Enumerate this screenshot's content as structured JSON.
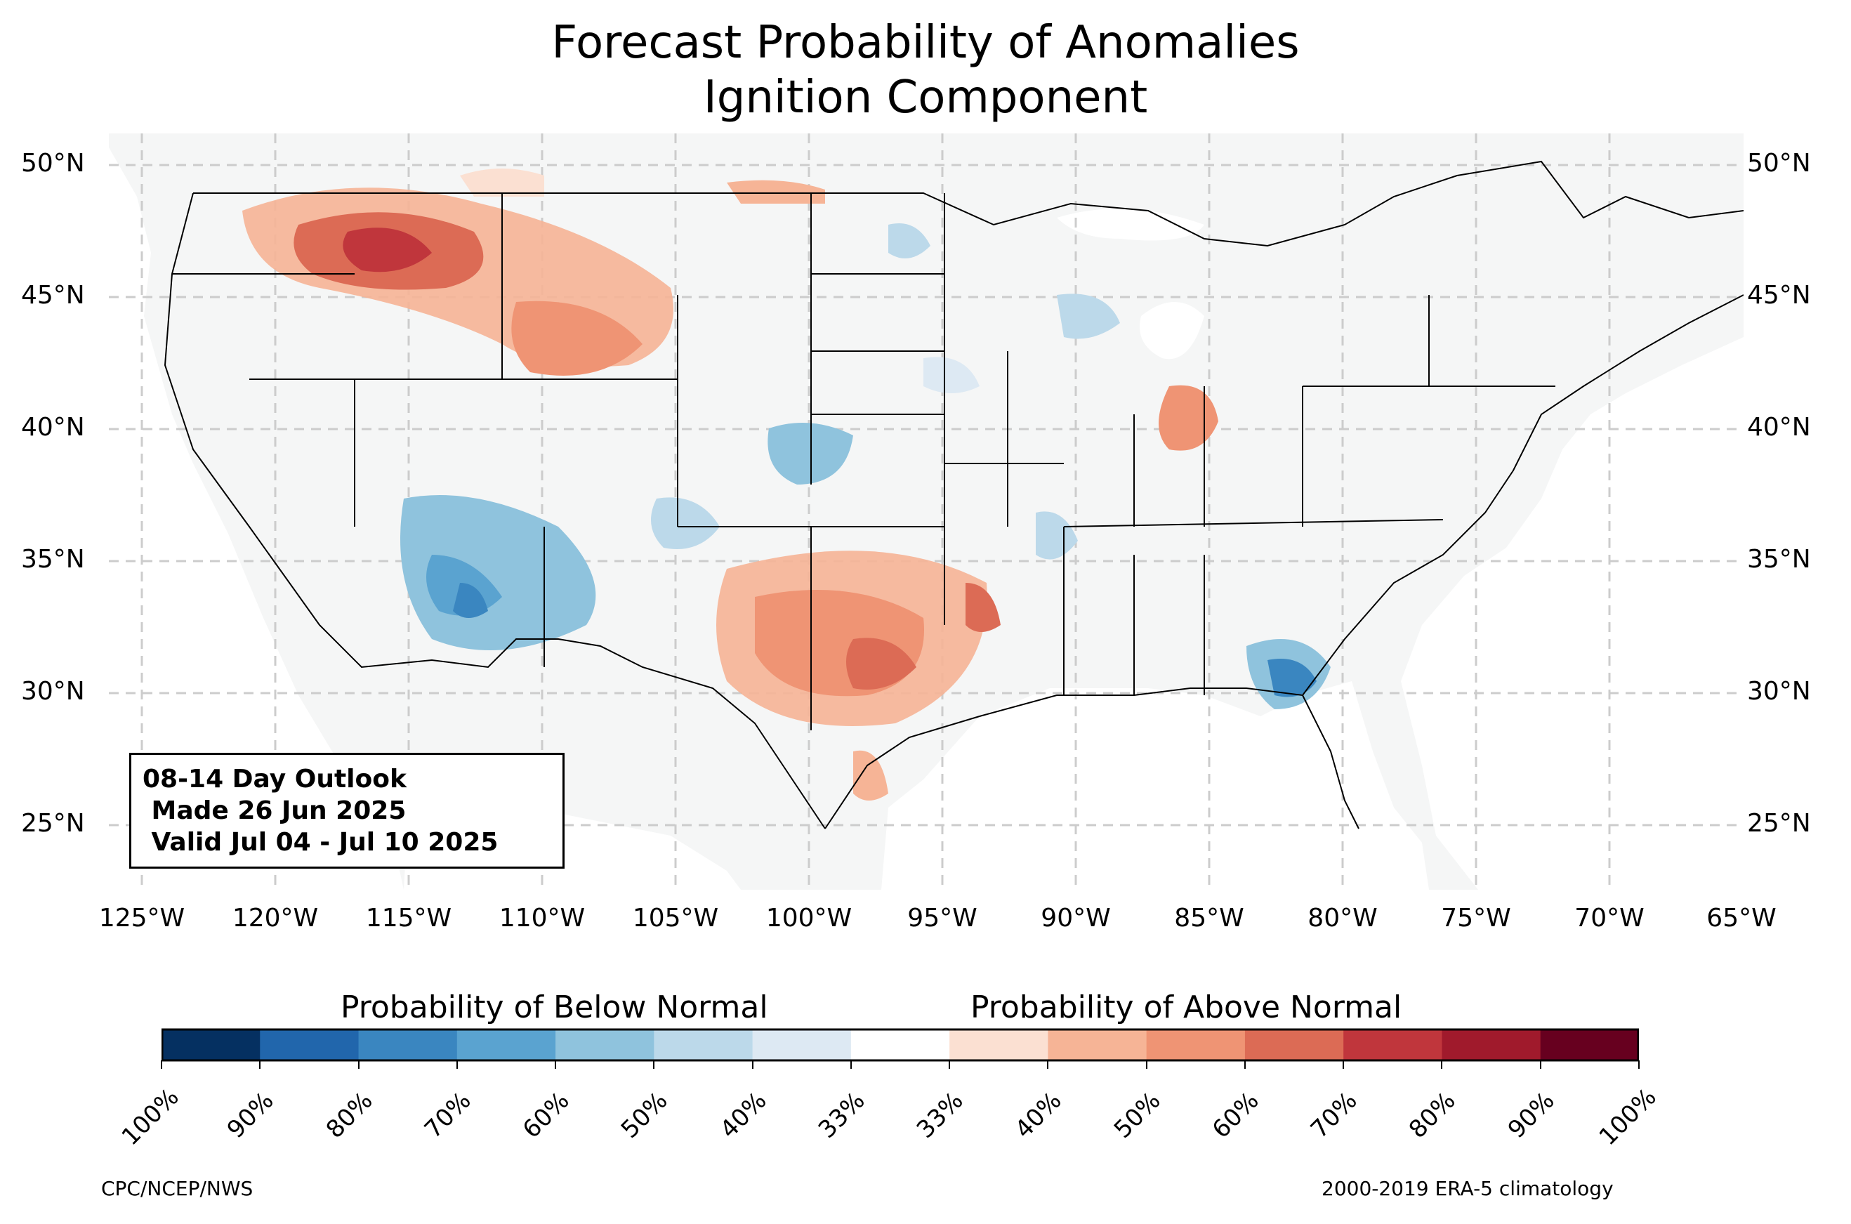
{
  "title": {
    "line1": "Forecast Probability of Anomalies",
    "line2": "Ignition Component"
  },
  "outlook": {
    "line1": "08-14 Day Outlook",
    "line2": " Made 26 Jun 2025",
    "line3": " Valid Jul 04 - Jul 10 2025"
  },
  "lat_labels": [
    "50°N",
    "45°N",
    "40°N",
    "35°N",
    "30°N",
    "25°N"
  ],
  "lon_labels": [
    "125°W",
    "120°W",
    "115°W",
    "110°W",
    "105°W",
    "100°W",
    "95°W",
    "90°W",
    "85°W",
    "80°W",
    "75°W",
    "70°W",
    "65°W"
  ],
  "colorbar": {
    "below_label": "Probability of Below Normal",
    "above_label": "Probability of Above Normal",
    "tick_labels": [
      "100%",
      "90%",
      "80%",
      "70%",
      "60%",
      "50%",
      "40%",
      "33%",
      "33%",
      "40%",
      "50%",
      "60%",
      "70%",
      "80%",
      "90%",
      "100%"
    ],
    "colors": [
      "#053061",
      "#2166ac",
      "#3a86c0",
      "#5aa3d0",
      "#8fc3dd",
      "#bcd9ea",
      "#dde9f3",
      "#ffffff",
      "#fbe0d2",
      "#f6b496",
      "#ef9474",
      "#dc6b55",
      "#c0363c",
      "#a01a2c",
      "#67001f"
    ]
  },
  "credits": {
    "left": "CPC/NCEP/NWS",
    "right": "2000-2019 ERA-5 climatology"
  },
  "colors": {
    "land": "#f5f6f6",
    "grid": "#cccccc"
  },
  "anomaly_regions": [
    {
      "region": "Pacific Northwest / Idaho",
      "category": "above",
      "level": "70%"
    },
    {
      "region": "Montana / Wyoming",
      "category": "above",
      "level": "60%"
    },
    {
      "region": "Arizona / New Mexico",
      "category": "below",
      "level": "70%"
    },
    {
      "region": "Texas / Oklahoma",
      "category": "above",
      "level": "70%"
    },
    {
      "region": "Kansas / Colorado",
      "category": "below",
      "level": "60%"
    },
    {
      "region": "Illinois",
      "category": "above",
      "level": "50%"
    },
    {
      "region": "Georgia / South Carolina coast",
      "category": "below",
      "level": "70%"
    },
    {
      "region": "Arkansas / Mississippi valley",
      "category": "below",
      "level": "50%"
    }
  ]
}
